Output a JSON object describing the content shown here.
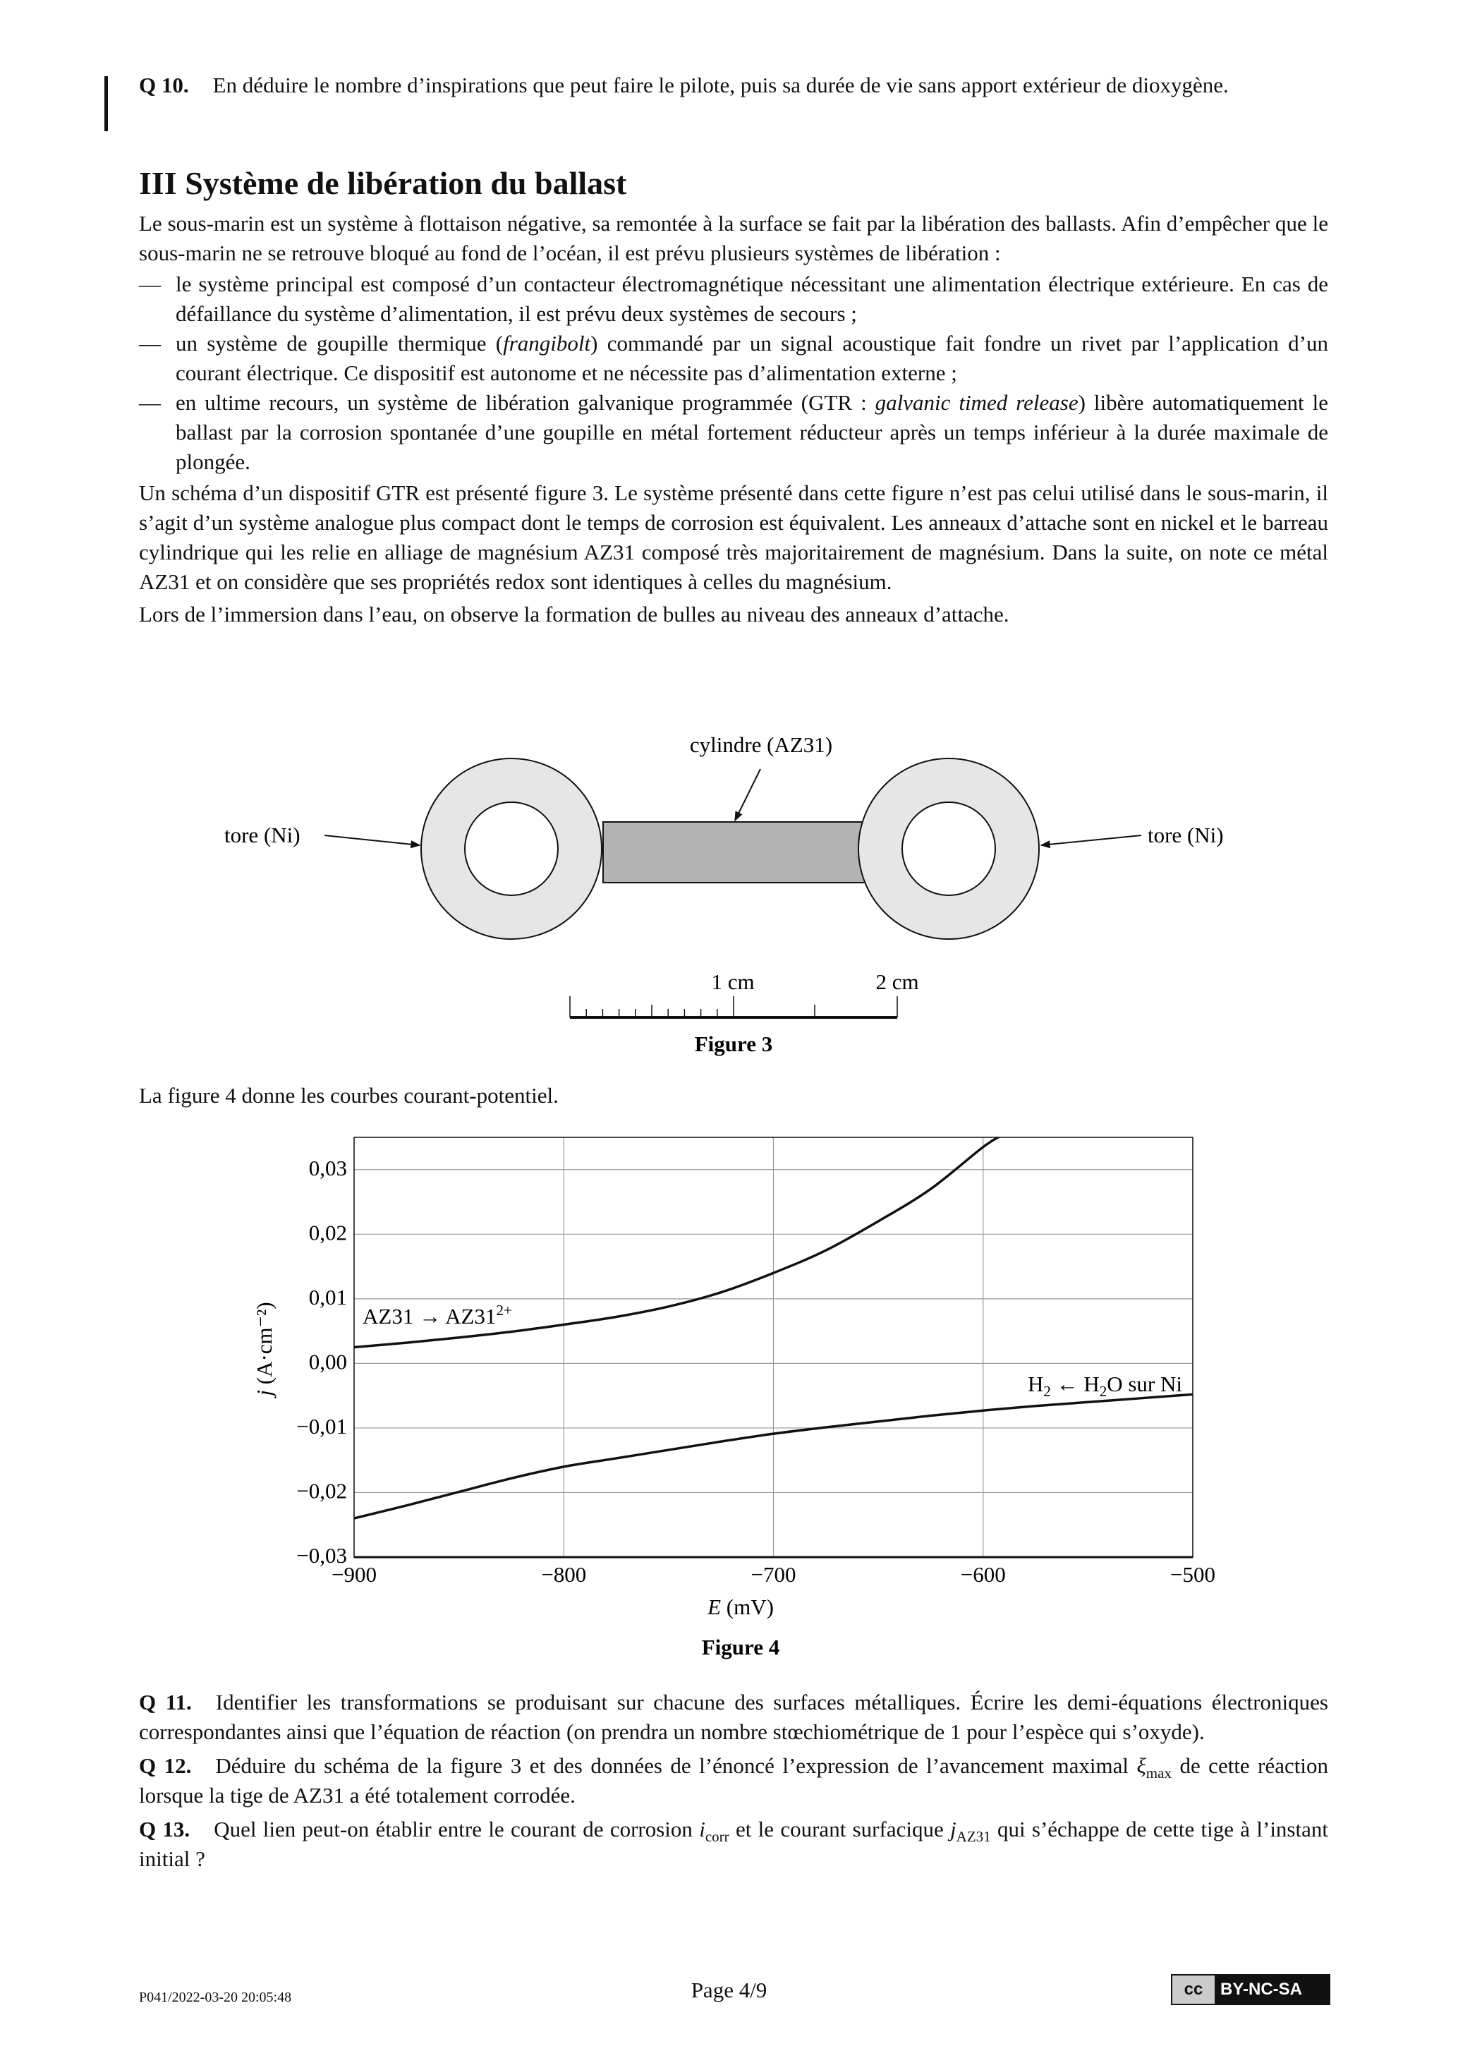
{
  "q10": {
    "label": "Q 10.",
    "text": "En déduire le nombre d’inspirations que peut faire le pilote, puis sa durée de vie sans apport extérieur de dioxygène."
  },
  "section": {
    "title": "III Système de libération du ballast"
  },
  "intro": "Le sous-marin est un système à flottaison négative, sa remontée à la surface se fait par la libération des ballasts. Afin d’empêcher que le sous-marin ne se retrouve bloqué au fond de l’océan, il est prévu plusieurs systèmes de libération :",
  "list": [
    [
      {
        "t": "le système principal est composé d’un contacteur électromagnétique nécessitant une alimentation électrique extérieure. En cas de défaillance du système d’alimentation, il est prévu deux systèmes de secours ;"
      }
    ],
    [
      {
        "t": "un système de goupille thermique ("
      },
      {
        "t": "frangibolt",
        "s": "i"
      },
      {
        "t": ") commandé par un signal acoustique fait fondre un rivet par l’application d’un courant électrique. Ce dispositif est autonome et ne nécessite pas d’alimentation externe ;"
      }
    ],
    [
      {
        "t": "en ultime recours, un système de libération galvanique programmée (GTR : "
      },
      {
        "t": "galvanic timed release",
        "s": "i"
      },
      {
        "t": ") libère automatiquement le ballast par la corrosion spontanée d’une goupille en métal fortement réducteur après un temps inférieur à la durée maximale de plongée."
      }
    ]
  ],
  "list_dash": "—",
  "para2": "Un schéma d’un dispositif GTR est présenté figure 3. Le système présenté dans cette figure n’est pas celui utilisé dans le sous-marin, il s’agit d’un système analogue plus compact dont le temps de corrosion est équivalent. Les anneaux d’attache sont en nickel et le barreau cylindrique qui les relie en alliage de magnésium AZ31 composé très majoritairement de magnésium. Dans la suite, on note ce métal AZ31 et on considère que ses propriétés redox sont identiques à celles du magnésium.",
  "para3": "Lors de l’immersion dans l’eau, on observe la formation de bulles au niveau des anneaux d’attache.",
  "figure3": {
    "label_cylinder": "cylindre (AZ31)",
    "label_left": "tore (Ni)",
    "label_right": "tore (Ni)",
    "scale_1": "1 cm",
    "scale_2": "2 cm",
    "caption": "Figure 3",
    "colors": {
      "torus": "#e6e6e6",
      "cylinder": "#b3b3b3"
    }
  },
  "para4": "La figure 4 donne les courbes courant-potentiel.",
  "chart_data": {
    "type": "line",
    "title": "",
    "xlabel_italic": "E",
    "xlabel_unit": " (mV)",
    "ylabel_italic": "j",
    "ylabel_unit": " (A·cm⁻²)",
    "xlim": [
      -900,
      -500
    ],
    "ylim": [
      -0.03,
      0.035
    ],
    "grid": true,
    "xticks": [
      -900,
      -800,
      -700,
      -600,
      -500
    ],
    "xtick_labels": [
      "−900",
      "−800",
      "−700",
      "−600",
      "−500"
    ],
    "yticks": [
      -0.03,
      -0.02,
      -0.01,
      0.0,
      0.01,
      0.02,
      0.03
    ],
    "ytick_labels": [
      "−0,03",
      "−0,02",
      "−0,01",
      "0,00",
      "0,01",
      "0,02",
      "0,03"
    ],
    "series": [
      {
        "label_main": "AZ31 → AZ31",
        "label_sup": "2+",
        "x": [
          -900,
          -875,
          -850,
          -825,
          -800,
          -775,
          -750,
          -725,
          -700,
          -675,
          -650,
          -625,
          -600,
          -590
        ],
        "y": [
          0.0025,
          0.0032,
          0.004,
          0.0049,
          0.006,
          0.0072,
          0.0088,
          0.011,
          0.014,
          0.0175,
          0.022,
          0.027,
          0.0335,
          0.0355
        ]
      },
      {
        "label_parts": [
          "H",
          "2",
          " ← H",
          "2",
          "O sur Ni"
        ],
        "x": [
          -900,
          -875,
          -850,
          -825,
          -800,
          -775,
          -750,
          -725,
          -700,
          -675,
          -650,
          -625,
          -600,
          -575,
          -550,
          -525,
          -500
        ],
        "y": [
          -0.024,
          -0.022,
          -0.0199,
          -0.0178,
          -0.016,
          -0.0147,
          -0.0134,
          -0.0121,
          -0.0109,
          -0.0099,
          -0.009,
          -0.0081,
          -0.0073,
          -0.0066,
          -0.006,
          -0.0054,
          -0.0048
        ]
      }
    ],
    "caption": "Figure 4"
  },
  "q11": {
    "label": "Q 11.",
    "text": "Identifier les transformations se produisant sur chacune des surfaces métalliques. Écrire les demi-équations électroniques correspondantes ainsi que l’équation de réaction (on prendra un nombre stœchiométrique de 1 pour l’espèce qui s’oxyde)."
  },
  "q12": {
    "label": "Q 12.",
    "parts": [
      {
        "t": "Déduire du schéma de la figure 3 et des données de l’énoncé l’expression de l’avancement maximal "
      },
      {
        "t": "ξ",
        "s": "i"
      },
      {
        "t": "max",
        "s": "sub"
      },
      {
        "t": " de cette réaction lorsque la tige de AZ31 a été totalement corrodée."
      }
    ]
  },
  "q13": {
    "label": "Q 13.",
    "parts": [
      {
        "t": "Quel lien peut-on établir entre le courant de corrosion "
      },
      {
        "t": "i",
        "s": "i"
      },
      {
        "t": "corr",
        "s": "sub"
      },
      {
        "t": " et le courant surfacique "
      },
      {
        "t": "j",
        "s": "i"
      },
      {
        "t": "AZ31",
        "s": "sub"
      },
      {
        "t": " qui s’échappe de cette tige à l’instant initial ?"
      }
    ]
  },
  "footer": {
    "left": "P041/2022-03-20 20:05:48",
    "page": "Page 4/9",
    "license_cc": "cc",
    "license": "BY-NC-SA"
  }
}
